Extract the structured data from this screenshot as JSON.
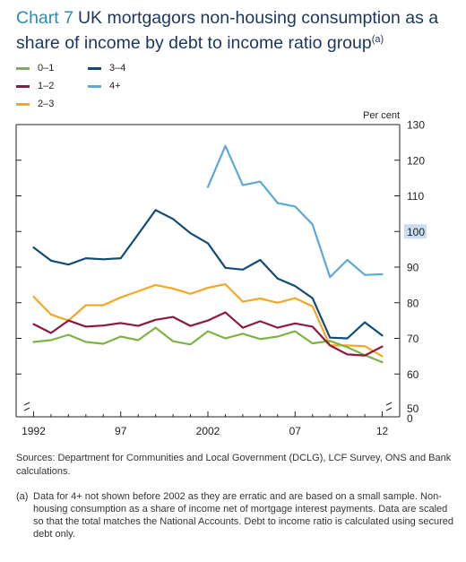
{
  "title": {
    "chart_number": "Chart 7",
    "line1": "UK mortgagors non-housing consumption as a",
    "line2": "share of income by debt to income ratio group",
    "note_marker": "(a)"
  },
  "chart_data": {
    "type": "line",
    "unit_label": "Per cent",
    "x_tick_labels": [
      "1992",
      "97",
      "2002",
      "07",
      "12"
    ],
    "x_ticks": [
      1992,
      1997,
      2002,
      2007,
      2012
    ],
    "xlim": [
      1991,
      2013
    ],
    "ylim": [
      50,
      130
    ],
    "y_ticks": [
      60,
      70,
      80,
      90,
      100,
      110,
      120,
      130
    ],
    "y_tick_labels": [
      "60",
      "70",
      "80",
      "90",
      "100",
      "110",
      "120",
      "130"
    ],
    "y_axis_bottom_labels": [
      "50",
      "0"
    ],
    "highlighted_y_tick": "100",
    "series": [
      {
        "name": "0–1",
        "color": "#7cb342",
        "x": [
          1992,
          1993,
          1994,
          1995,
          1996,
          1997,
          1998,
          1999,
          2000,
          2001,
          2002,
          2003,
          2004,
          2005,
          2006,
          2007,
          2008,
          2009,
          2010,
          2011,
          2012
        ],
        "y": [
          69,
          69.5,
          71,
          69,
          68.5,
          70.5,
          69.5,
          73,
          69.2,
          68.3,
          72,
          70,
          71.3,
          69.8,
          70.5,
          72,
          68.6,
          69.3,
          67.5,
          65.3,
          63.3
        ]
      },
      {
        "name": "1–2",
        "color": "#8b1a3f",
        "x": [
          1992,
          1993,
          1994,
          1995,
          1996,
          1997,
          1998,
          1999,
          2000,
          2001,
          2002,
          2003,
          2004,
          2005,
          2006,
          2007,
          2008,
          2009,
          2010,
          2011,
          2012
        ],
        "y": [
          74,
          71.5,
          75,
          73.3,
          73.6,
          74.3,
          73.5,
          75.2,
          76,
          73.5,
          75,
          77.3,
          73,
          74.8,
          73,
          74.2,
          73.3,
          68,
          65.5,
          65.2,
          67.7
        ]
      },
      {
        "name": "2–3",
        "color": "#f5a623",
        "x": [
          1992,
          1993,
          1994,
          1995,
          1996,
          1997,
          1998,
          1999,
          2000,
          2001,
          2002,
          2003,
          2004,
          2005,
          2006,
          2007,
          2008,
          2009,
          2010,
          2011,
          2012
        ],
        "y": [
          81.7,
          76.7,
          75,
          79.3,
          79.3,
          81.5,
          83.2,
          85,
          84,
          82.5,
          84.2,
          85.2,
          80.3,
          81.2,
          80,
          81.3,
          79,
          68,
          68,
          67.8,
          65
        ]
      },
      {
        "name": "3–4",
        "color": "#0f4c75",
        "x": [
          1992,
          1993,
          1994,
          1995,
          1996,
          1997,
          1998,
          1999,
          2000,
          2001,
          2002,
          2003,
          2004,
          2005,
          2006,
          2007,
          2008,
          2009,
          2010,
          2011,
          2012
        ],
        "y": [
          95.5,
          91.8,
          90.7,
          92.5,
          92.2,
          92.5,
          99.2,
          106,
          103.5,
          99.5,
          96.7,
          89.8,
          89.3,
          92,
          86.8,
          84.7,
          81.3,
          70.2,
          70,
          74.5,
          70.8
        ]
      },
      {
        "name": "4+",
        "color": "#5aa9d6",
        "x": [
          2002,
          2003,
          2004,
          2005,
          2006,
          2007,
          2008,
          2009,
          2010,
          2011,
          2012
        ],
        "y": [
          112.5,
          124,
          113,
          114,
          108,
          107,
          102,
          87.2,
          92,
          87.8,
          88
        ]
      }
    ]
  },
  "sources": "Sources: Department for Communities and Local Government (DCLG), LCF Survey, ONS and Bank calculations.",
  "footnote": {
    "marker": "(a)",
    "text": "Data for 4+ not shown before 2002 as they are erratic and are based on a small sample. Non-housing consumption as a share of income net of mortgage interest payments. Data are scaled so that the total matches the National Accounts. Debt to income ratio is calculated using secured debt only."
  }
}
